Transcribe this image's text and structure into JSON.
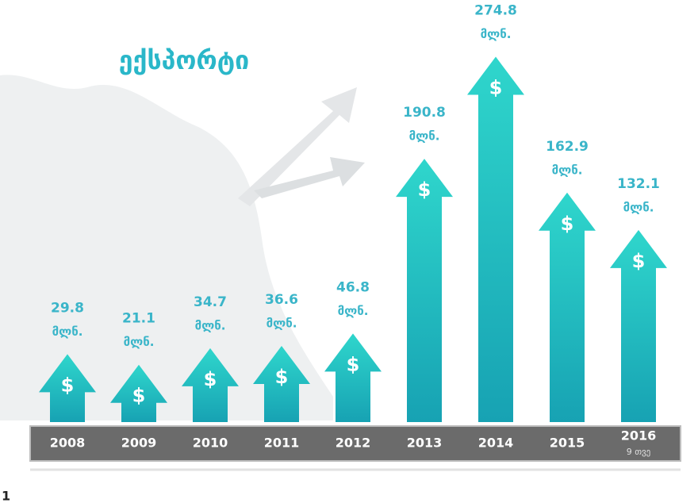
{
  "chart_data": {
    "type": "arrow-bar",
    "title": "ექსპორტი",
    "categories": [
      "2008",
      "2009",
      "2010",
      "2011",
      "2012",
      "2013",
      "2014",
      "2015",
      "2016"
    ],
    "category_notes": [
      null,
      null,
      null,
      null,
      null,
      null,
      null,
      null,
      "9 თვე"
    ],
    "values": [
      29.8,
      21.1,
      34.7,
      36.6,
      46.8,
      190.8,
      274.8,
      162.9,
      132.1
    ],
    "unit": "მლნ.",
    "icon_symbol": "$",
    "color": "#22c3c4"
  },
  "page_number": "1"
}
